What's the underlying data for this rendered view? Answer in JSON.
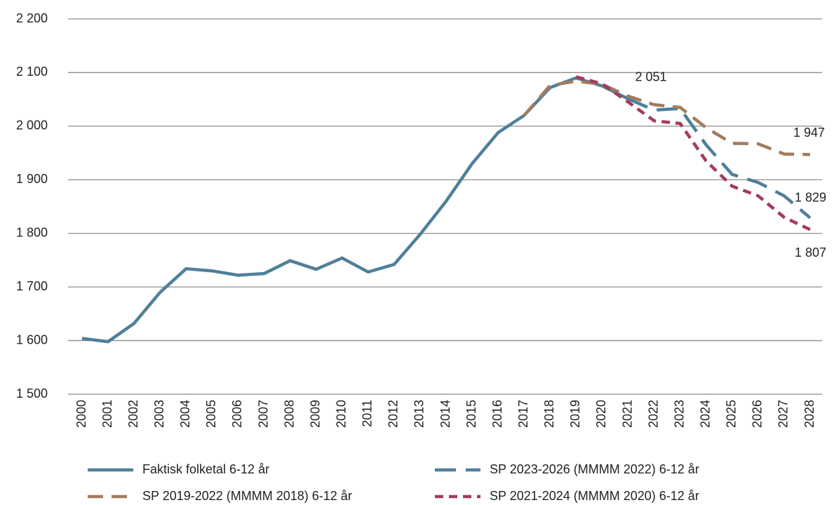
{
  "chart_data": {
    "type": "line",
    "categories": [
      "2000",
      "2001",
      "2002",
      "2003",
      "2004",
      "2005",
      "2006",
      "2007",
      "2008",
      "2009",
      "2010",
      "2011",
      "2012",
      "2013",
      "2014",
      "2015",
      "2016",
      "2017",
      "2018",
      "2019",
      "2020",
      "2021",
      "2022",
      "2023",
      "2024",
      "2025",
      "2026",
      "2027",
      "2028"
    ],
    "series": [
      {
        "name": "Faktisk folketal 6-12 år",
        "color": "#4f7f9a",
        "dash": "solid",
        "values": [
          1604,
          1598,
          1632,
          1690,
          1734,
          1730,
          1722,
          1725,
          1749,
          1733,
          1754,
          1728,
          1742,
          1798,
          1860,
          1930,
          1988,
          2020,
          2072,
          2090,
          2075,
          2051,
          null,
          null,
          null,
          null,
          null,
          null,
          null
        ],
        "value_labels": [
          null,
          null,
          null,
          null,
          null,
          null,
          null,
          null,
          null,
          null,
          null,
          null,
          null,
          null,
          null,
          null,
          null,
          null,
          null,
          null,
          null,
          "2 051",
          null,
          null,
          null,
          null,
          null,
          null,
          null
        ]
      },
      {
        "name": "SP 2023-2026 (MMMM 2022) 6-12 år",
        "color": "#4f7f9a",
        "dash": "long",
        "values": [
          null,
          null,
          null,
          null,
          null,
          null,
          null,
          null,
          null,
          null,
          null,
          null,
          null,
          null,
          null,
          null,
          null,
          null,
          null,
          null,
          null,
          2051,
          2030,
          2033,
          1965,
          1910,
          1895,
          1870,
          1829
        ],
        "value_labels": [
          null,
          null,
          null,
          null,
          null,
          null,
          null,
          null,
          null,
          null,
          null,
          null,
          null,
          null,
          null,
          null,
          null,
          null,
          null,
          null,
          null,
          null,
          null,
          null,
          null,
          null,
          null,
          null,
          "1 829"
        ]
      },
      {
        "name": "SP 2019-2022 (MMMM 2018) 6-12 år",
        "color": "#a27c5f",
        "dash": "medium",
        "values": [
          null,
          null,
          null,
          null,
          null,
          null,
          null,
          null,
          null,
          null,
          null,
          null,
          null,
          null,
          null,
          null,
          null,
          2020,
          2076,
          2084,
          2078,
          2056,
          2040,
          2035,
          1997,
          1968,
          1967,
          1948,
          1947
        ],
        "value_labels": [
          null,
          null,
          null,
          null,
          null,
          null,
          null,
          null,
          null,
          null,
          null,
          null,
          null,
          null,
          null,
          null,
          null,
          null,
          null,
          null,
          null,
          null,
          null,
          null,
          null,
          null,
          null,
          null,
          "1 947"
        ]
      },
      {
        "name": "SP 2021-2024 (MMMM 2020) 6-12 år",
        "color": "#a53a60",
        "dash": "short",
        "values": [
          null,
          null,
          null,
          null,
          null,
          null,
          null,
          null,
          null,
          null,
          null,
          null,
          null,
          null,
          null,
          null,
          null,
          null,
          null,
          2092,
          2079,
          2045,
          2010,
          2005,
          1935,
          1888,
          1870,
          1830,
          1807
        ],
        "value_labels": [
          null,
          null,
          null,
          null,
          null,
          null,
          null,
          null,
          null,
          null,
          null,
          null,
          null,
          null,
          null,
          null,
          null,
          null,
          null,
          null,
          null,
          null,
          null,
          null,
          null,
          null,
          null,
          null,
          "1 807"
        ]
      }
    ],
    "ylim": [
      1500,
      2200
    ],
    "yticks": [
      {
        "value": 1500,
        "label": "1 500"
      },
      {
        "value": 1600,
        "label": "1 600"
      },
      {
        "value": 1700,
        "label": "1 700"
      },
      {
        "value": 1800,
        "label": "1 800"
      },
      {
        "value": 1900,
        "label": "1 900"
      },
      {
        "value": 2000,
        "label": "2 000"
      },
      {
        "value": 2100,
        "label": "2 100"
      },
      {
        "value": 2200,
        "label": "2 200"
      }
    ],
    "grid": true
  }
}
